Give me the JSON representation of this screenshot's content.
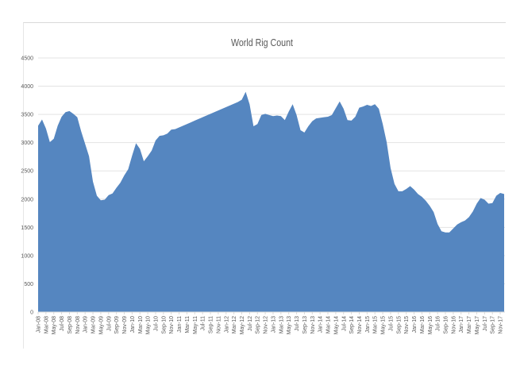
{
  "chart_data": {
    "type": "area",
    "title": "World Rig Count",
    "xlabel": "",
    "ylabel": "",
    "ylim": [
      0,
      4500
    ],
    "yticks": [
      0,
      500,
      1000,
      1500,
      2000,
      2500,
      3000,
      3500,
      4000,
      4500
    ],
    "grid": true,
    "legend": null,
    "color": "#5586C0",
    "tick_labels": [
      "Jan-08",
      "Mar-08",
      "May-08",
      "Jul-08",
      "Sep-08",
      "Nov-08",
      "Jan-09",
      "Mar-09",
      "May-09",
      "Jul-09",
      "Sep-09",
      "Nov-09",
      "Jan-10",
      "Mar-10",
      "May-10",
      "Jul-10",
      "Sep-10",
      "Nov-10",
      "Jan-11",
      "Mar-11",
      "May-11",
      "Jul-11",
      "Sep-11",
      "Nov-11",
      "Jan-12",
      "Mar-12",
      "May-12",
      "Jul-12",
      "Sep-12",
      "Nov-12",
      "Jan-13",
      "Mar-13",
      "May-13",
      "Jul-13",
      "Sep-13",
      "Nov-13",
      "Jan-14",
      "Mar-14",
      "May-14",
      "Jul-14",
      "Sep-14",
      "Nov-14",
      "Jan-15",
      "Mar-15",
      "May-15",
      "Jul-15",
      "Sep-15",
      "Nov-15",
      "Jan-16",
      "Mar-16",
      "May-16",
      "Jul-16",
      "Sep-16",
      "Nov-16",
      "Jan-17",
      "Mar-17",
      "May-17",
      "Jul-17",
      "Sep-17",
      "Nov-17"
    ],
    "series": [
      {
        "name": "World Rig Count",
        "values": [
          3300,
          3410,
          3250,
          3010,
          3070,
          3300,
          3460,
          3540,
          3560,
          3510,
          3450,
          3200,
          2980,
          2760,
          2310,
          2060,
          1980,
          1990,
          2070,
          2100,
          2200,
          2290,
          2420,
          2530,
          2770,
          2990,
          2890,
          2670,
          2760,
          2860,
          3040,
          3120,
          3130,
          3160,
          3230,
          3240,
          3270,
          3300,
          3330,
          3360,
          3390,
          3420,
          3450,
          3480,
          3510,
          3540,
          3570,
          3600,
          3630,
          3660,
          3690,
          3720,
          3760,
          3900,
          3680,
          3290,
          3330,
          3490,
          3510,
          3490,
          3470,
          3480,
          3470,
          3400,
          3550,
          3680,
          3490,
          3220,
          3180,
          3290,
          3380,
          3430,
          3440,
          3450,
          3460,
          3490,
          3610,
          3730,
          3600,
          3400,
          3390,
          3460,
          3620,
          3640,
          3670,
          3650,
          3680,
          3600,
          3330,
          3010,
          2550,
          2270,
          2140,
          2140,
          2180,
          2230,
          2170,
          2090,
          2040,
          1970,
          1880,
          1770,
          1560,
          1430,
          1410,
          1410,
          1480,
          1550,
          1590,
          1620,
          1680,
          1780,
          1920,
          2020,
          1990,
          1920,
          1930,
          2060,
          2110,
          2090
        ]
      }
    ]
  }
}
